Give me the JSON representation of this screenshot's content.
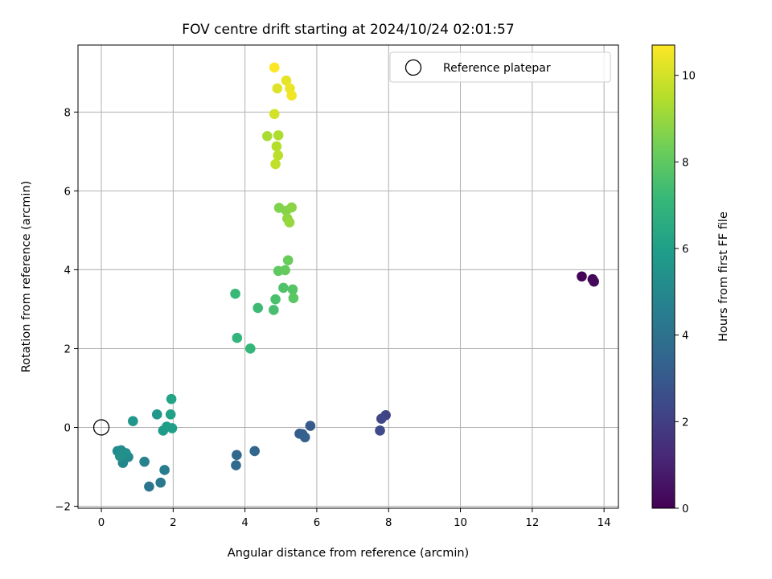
{
  "chart_data": {
    "type": "scatter",
    "title": "FOV centre drift starting at 2024/10/24 02:01:57",
    "xlabel": "Angular distance from reference (arcmin)",
    "ylabel": "Rotation from reference (arcmin)",
    "xlim": [
      -0.65,
      14.4
    ],
    "ylim": [
      -2.05,
      9.7
    ],
    "xticks": [
      0,
      2,
      4,
      6,
      8,
      10,
      12,
      14
    ],
    "yticks": [
      -2,
      0,
      2,
      4,
      6,
      8
    ],
    "grid": true,
    "legend": {
      "placement": "top-right",
      "entries": [
        "Reference platepar"
      ]
    },
    "reference": {
      "x": 0,
      "y": 0
    },
    "colorbar": {
      "label": "Hours from first FF file",
      "range": [
        0,
        10.7
      ],
      "ticks": [
        0,
        2,
        4,
        6,
        8,
        10
      ],
      "colormap": "viridis",
      "colors": [
        "#440154",
        "#482878",
        "#3e4989",
        "#31688e",
        "#26828e",
        "#1f9e89",
        "#35b779",
        "#6ece58",
        "#b5de2b",
        "#fde725"
      ]
    },
    "points": [
      {
        "x": 13.38,
        "y": 3.83,
        "h": 0.05
      },
      {
        "x": 13.68,
        "y": 3.76,
        "h": 0.15
      },
      {
        "x": 13.72,
        "y": 3.7,
        "h": 0.25
      },
      {
        "x": 7.92,
        "y": 0.31,
        "h": 2.2
      },
      {
        "x": 7.8,
        "y": 0.22,
        "h": 2.3
      },
      {
        "x": 7.76,
        "y": -0.08,
        "h": 2.4
      },
      {
        "x": 5.82,
        "y": 0.04,
        "h": 3.0
      },
      {
        "x": 5.52,
        "y": -0.16,
        "h": 3.1
      },
      {
        "x": 5.6,
        "y": -0.17,
        "h": 3.2
      },
      {
        "x": 5.67,
        "y": -0.25,
        "h": 3.3
      },
      {
        "x": 4.27,
        "y": -0.6,
        "h": 3.5
      },
      {
        "x": 3.77,
        "y": -0.7,
        "h": 3.6
      },
      {
        "x": 3.75,
        "y": -0.96,
        "h": 3.7
      },
      {
        "x": 1.33,
        "y": -1.5,
        "h": 4.2
      },
      {
        "x": 1.65,
        "y": -1.4,
        "h": 4.3
      },
      {
        "x": 1.76,
        "y": -1.08,
        "h": 4.5
      },
      {
        "x": 1.2,
        "y": -0.87,
        "h": 4.7
      },
      {
        "x": 0.6,
        "y": -0.9,
        "h": 4.9
      },
      {
        "x": 0.75,
        "y": -0.75,
        "h": 5.0
      },
      {
        "x": 0.45,
        "y": -0.6,
        "h": 5.1
      },
      {
        "x": 0.55,
        "y": -0.58,
        "h": 5.2
      },
      {
        "x": 0.68,
        "y": -0.65,
        "h": 5.3
      },
      {
        "x": 0.52,
        "y": -0.73,
        "h": 5.4
      },
      {
        "x": 0.88,
        "y": 0.16,
        "h": 5.6
      },
      {
        "x": 1.55,
        "y": 0.33,
        "h": 5.7
      },
      {
        "x": 1.72,
        "y": -0.08,
        "h": 5.8
      },
      {
        "x": 1.82,
        "y": 0.02,
        "h": 5.9
      },
      {
        "x": 1.97,
        "y": -0.02,
        "h": 6.0
      },
      {
        "x": 1.93,
        "y": 0.33,
        "h": 6.1
      },
      {
        "x": 1.95,
        "y": 0.72,
        "h": 6.2
      },
      {
        "x": 3.78,
        "y": 2.27,
        "h": 7.0
      },
      {
        "x": 4.15,
        "y": 2.0,
        "h": 7.1
      },
      {
        "x": 3.73,
        "y": 3.39,
        "h": 7.2
      },
      {
        "x": 4.36,
        "y": 3.03,
        "h": 7.3
      },
      {
        "x": 4.8,
        "y": 2.98,
        "h": 7.5
      },
      {
        "x": 4.85,
        "y": 3.25,
        "h": 7.6
      },
      {
        "x": 5.07,
        "y": 3.54,
        "h": 7.7
      },
      {
        "x": 5.33,
        "y": 3.5,
        "h": 7.8
      },
      {
        "x": 5.35,
        "y": 3.28,
        "h": 7.9
      },
      {
        "x": 4.93,
        "y": 3.97,
        "h": 8.0
      },
      {
        "x": 5.12,
        "y": 3.99,
        "h": 8.1
      },
      {
        "x": 5.2,
        "y": 4.24,
        "h": 8.2
      },
      {
        "x": 4.95,
        "y": 5.57,
        "h": 8.6
      },
      {
        "x": 5.15,
        "y": 5.5,
        "h": 8.7
      },
      {
        "x": 5.3,
        "y": 5.58,
        "h": 8.8
      },
      {
        "x": 5.18,
        "y": 5.3,
        "h": 8.9
      },
      {
        "x": 5.24,
        "y": 5.2,
        "h": 9.0
      },
      {
        "x": 4.62,
        "y": 7.39,
        "h": 9.3
      },
      {
        "x": 4.93,
        "y": 7.41,
        "h": 9.4
      },
      {
        "x": 4.88,
        "y": 7.13,
        "h": 9.5
      },
      {
        "x": 4.92,
        "y": 6.9,
        "h": 9.6
      },
      {
        "x": 4.85,
        "y": 6.68,
        "h": 9.7
      },
      {
        "x": 4.82,
        "y": 7.95,
        "h": 10.0
      },
      {
        "x": 4.9,
        "y": 8.6,
        "h": 10.2
      },
      {
        "x": 5.15,
        "y": 8.8,
        "h": 10.3
      },
      {
        "x": 5.25,
        "y": 8.6,
        "h": 10.4
      },
      {
        "x": 5.3,
        "y": 8.42,
        "h": 10.5
      },
      {
        "x": 4.82,
        "y": 9.13,
        "h": 10.7
      }
    ]
  }
}
